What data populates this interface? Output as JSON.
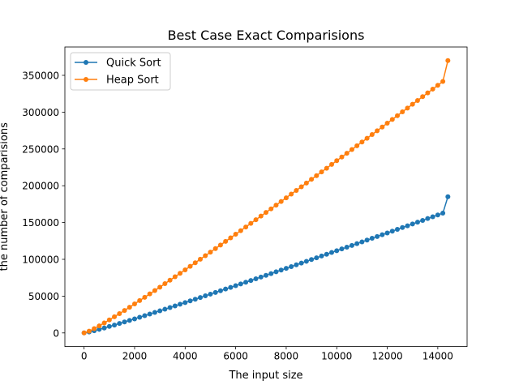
{
  "chart_data": {
    "type": "line",
    "title": "Best Case Exact Comparisions",
    "xlabel": "The input size",
    "ylabel": "the number of comparisions",
    "xlim": [
      -760,
      15160
    ],
    "ylim": [
      -18500,
      388500
    ],
    "xticks": [
      0,
      2000,
      4000,
      6000,
      8000,
      10000,
      12000,
      14000
    ],
    "yticks": [
      0,
      50000,
      100000,
      150000,
      200000,
      250000,
      300000,
      350000
    ],
    "grid": false,
    "legend": "top-left",
    "x_range": [
      0,
      14400
    ],
    "series": [
      {
        "name": "Quick Sort",
        "color": "#1f77b4",
        "marker": "circle",
        "x": [
          0,
          200,
          400,
          600,
          800,
          1000,
          1200,
          1400,
          1600,
          1800,
          2000,
          2200,
          2400,
          2600,
          2800,
          3000,
          3200,
          3400,
          3600,
          3800,
          4000,
          4200,
          4400,
          4600,
          4800,
          5000,
          5200,
          5400,
          5600,
          5800,
          6000,
          6200,
          6400,
          6600,
          6800,
          7000,
          7200,
          7400,
          7600,
          7800,
          8000,
          8200,
          8400,
          8600,
          8800,
          9000,
          9200,
          9400,
          9600,
          9800,
          10000,
          10200,
          10400,
          10600,
          10800,
          11000,
          11200,
          11400,
          11600,
          11800,
          12000,
          12200,
          12400,
          12600,
          12800,
          13000,
          13200,
          13400,
          13600,
          13800,
          14000,
          14200,
          14400
        ],
        "y": [
          0,
          1300,
          3000,
          4800,
          6700,
          8800,
          10700,
          12800,
          14900,
          17000,
          19100,
          21300,
          23500,
          25600,
          27800,
          30000,
          32200,
          34500,
          36700,
          39000,
          41200,
          43500,
          45800,
          48100,
          50400,
          52700,
          55000,
          57300,
          59600,
          61900,
          64200,
          66600,
          68900,
          71200,
          73600,
          75900,
          78300,
          80600,
          83000,
          85400,
          87700,
          90100,
          92500,
          94900,
          97300,
          99700,
          102100,
          104500,
          106900,
          109300,
          111700,
          114100,
          116500,
          118900,
          121300,
          123700,
          126100,
          128600,
          131000,
          133400,
          135800,
          138300,
          140700,
          143200,
          145600,
          148000,
          150500,
          152900,
          155400,
          157800,
          160300,
          162700,
          185000
        ]
      },
      {
        "name": "Heap Sort",
        "color": "#ff7f0e",
        "marker": "circle",
        "x": [
          0,
          200,
          400,
          600,
          800,
          1000,
          1200,
          1400,
          1600,
          1800,
          2000,
          2200,
          2400,
          2600,
          2800,
          3000,
          3200,
          3400,
          3600,
          3800,
          4000,
          4200,
          4400,
          4600,
          4800,
          5000,
          5200,
          5400,
          5600,
          5800,
          6000,
          6200,
          6400,
          6600,
          6800,
          7000,
          7200,
          7400,
          7600,
          7800,
          8000,
          8200,
          8400,
          8600,
          8800,
          9000,
          9200,
          9400,
          9600,
          9800,
          10000,
          10200,
          10400,
          10600,
          10800,
          11000,
          11200,
          11400,
          11600,
          11800,
          12000,
          12200,
          12400,
          12600,
          12800,
          13000,
          13200,
          13400,
          13600,
          13800,
          14000,
          14200,
          14400
        ],
        "y": [
          0,
          2400,
          5800,
          9600,
          13600,
          17700,
          21900,
          26200,
          30500,
          34900,
          39400,
          43900,
          48400,
          53000,
          57600,
          62200,
          66900,
          71600,
          76300,
          81000,
          85700,
          90500,
          95300,
          100100,
          104900,
          109700,
          114600,
          119400,
          124300,
          129200,
          134100,
          139000,
          143900,
          148800,
          153800,
          158700,
          163700,
          168600,
          173600,
          178600,
          183600,
          188600,
          193600,
          198600,
          203600,
          208700,
          213700,
          218800,
          223800,
          228900,
          234000,
          239000,
          244100,
          249200,
          254300,
          259400,
          264500,
          269600,
          274700,
          279800,
          285000,
          290100,
          295200,
          300400,
          305500,
          310700,
          315800,
          321000,
          326100,
          331300,
          336500,
          341700,
          370000
        ]
      }
    ]
  }
}
